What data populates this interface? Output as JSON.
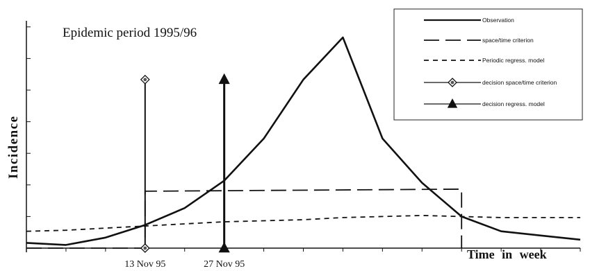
{
  "chart_data": {
    "type": "line",
    "title": "Epidemic period 1995/96",
    "xlabel": "Time in week",
    "ylabel": "Incidence",
    "xlim": [
      0,
      14
    ],
    "ylim": [
      0,
      10
    ],
    "grid": false,
    "legend_position": "top-right",
    "x_tick_labels": [
      {
        "x": 3,
        "label": "13 Nov 95"
      },
      {
        "x": 5,
        "label": "27 Nov 95"
      }
    ],
    "series": [
      {
        "name": "Observation",
        "style": "solid",
        "x": [
          0,
          1,
          2,
          3,
          4,
          5,
          6,
          7,
          8,
          9,
          10,
          11,
          12,
          13,
          14
        ],
        "y": [
          0.25,
          0.15,
          0.5,
          1.1,
          1.9,
          3.2,
          5.2,
          8.0,
          10.0,
          5.2,
          3.1,
          1.5,
          0.8,
          0.6,
          0.4
        ]
      },
      {
        "name": "space/time criterion",
        "style": "long-dash",
        "x": [
          0,
          3,
          3,
          11,
          11
        ],
        "y": [
          0,
          0,
          2.7,
          2.8,
          0
        ]
      },
      {
        "name": "Periodic regress. model",
        "style": "short-dash",
        "x": [
          0,
          1,
          2,
          3,
          4,
          5,
          6,
          7,
          8,
          9,
          10,
          11,
          12,
          13,
          14
        ],
        "y": [
          0.8,
          0.85,
          0.95,
          1.05,
          1.15,
          1.25,
          1.3,
          1.35,
          1.45,
          1.5,
          1.55,
          1.5,
          1.45,
          1.45,
          1.45
        ]
      },
      {
        "name": "decision space/time criterion",
        "style": "vertical-line-diamond",
        "x": [
          3
        ],
        "y": [
          8.0
        ]
      },
      {
        "name": "decision regress. model",
        "style": "vertical-line-triangle",
        "x": [
          5
        ],
        "y": [
          8.0
        ]
      }
    ],
    "legend": [
      {
        "label": "Observation",
        "style": "solid"
      },
      {
        "label": "space/time criterion",
        "style": "long-dash"
      },
      {
        "label": "Periodic regress. model",
        "style": "short-dash"
      },
      {
        "label": "decision space/time criterion",
        "style": "diamond"
      },
      {
        "label": "decision regress. model",
        "style": "triangle"
      }
    ]
  }
}
